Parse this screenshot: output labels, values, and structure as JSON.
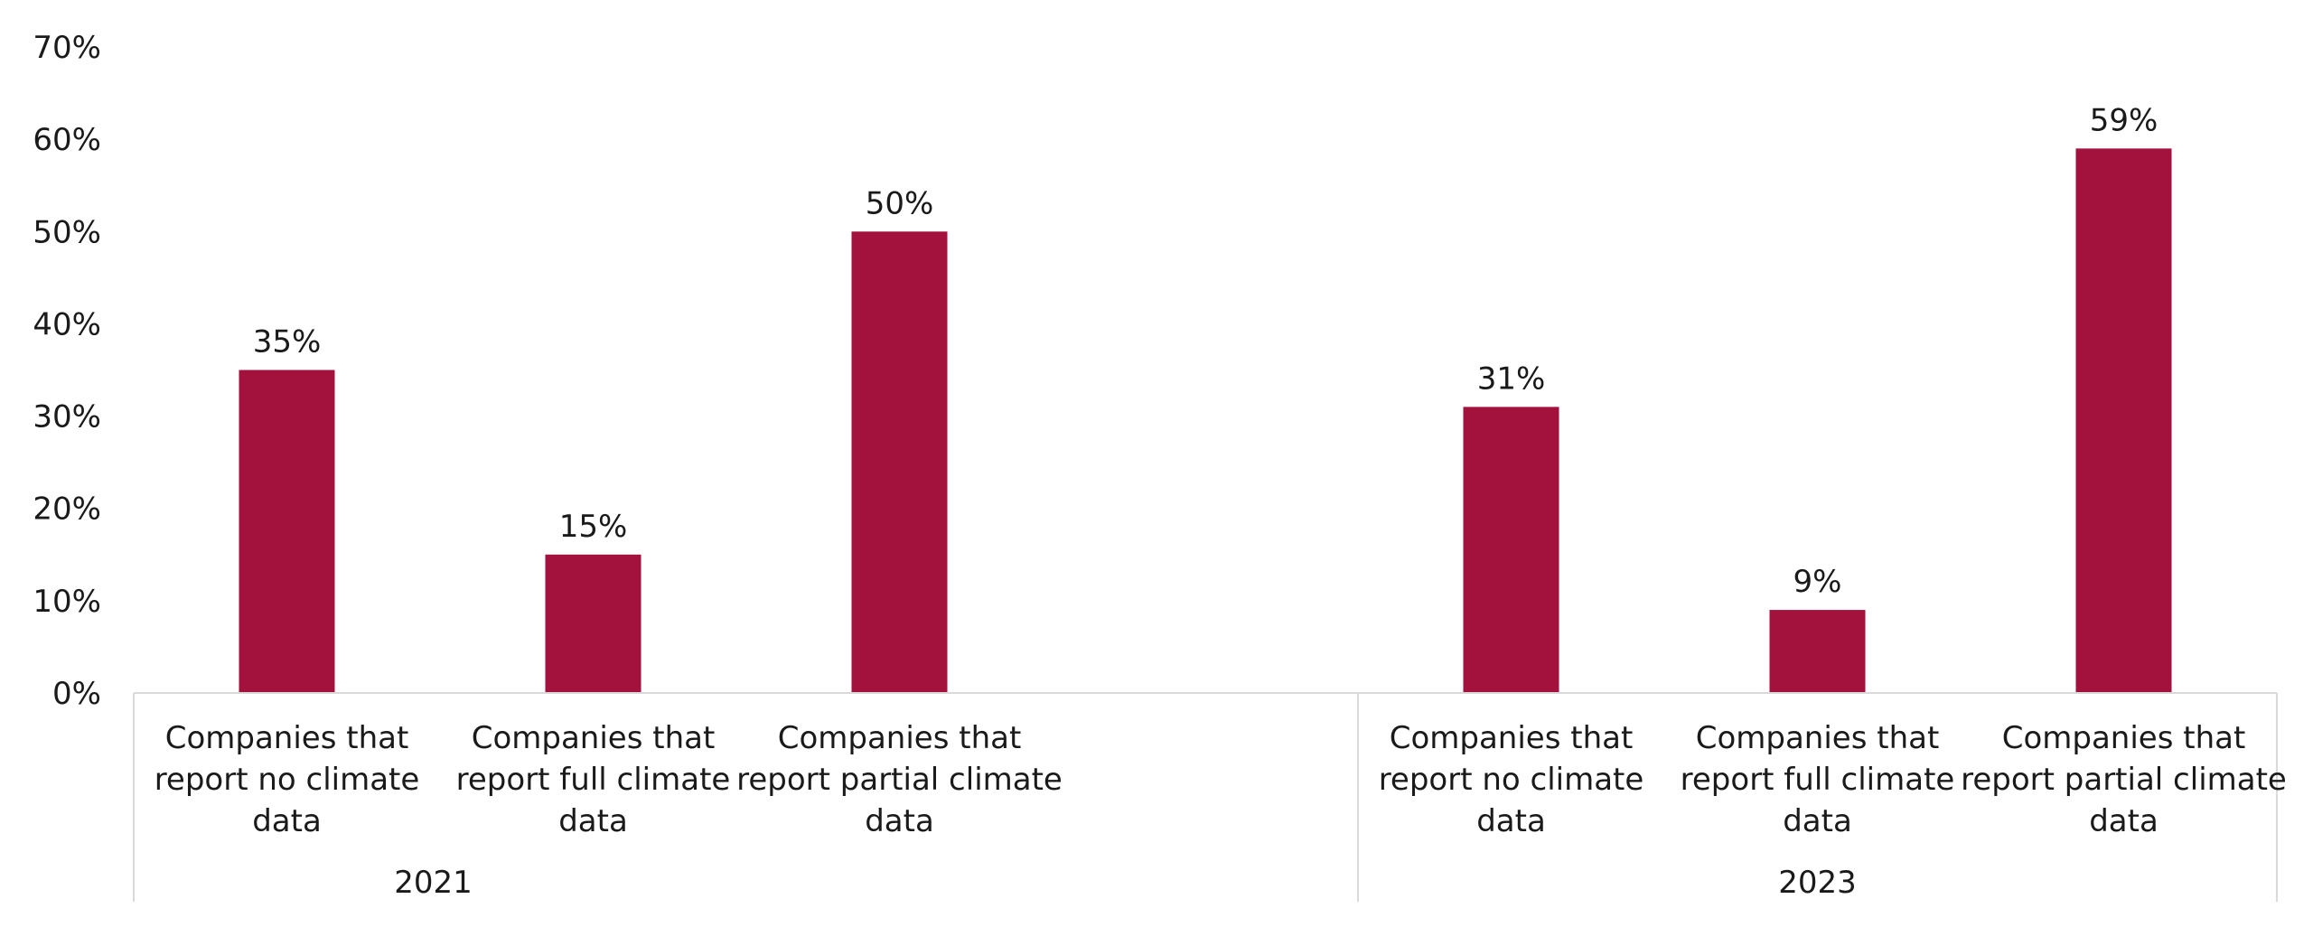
{
  "chart_data": {
    "type": "bar",
    "title": "",
    "xlabel": "",
    "ylabel": "",
    "ylim": [
      0,
      70
    ],
    "y_ticks": [
      "0%",
      "10%",
      "20%",
      "30%",
      "40%",
      "50%",
      "60%",
      "70%"
    ],
    "grid": false,
    "legend": "none",
    "bar_color": "#A3123C",
    "groups": [
      {
        "label": "2021",
        "categories": [
          [
            "Companies that",
            "report no climate",
            "data"
          ],
          [
            "Companies that",
            "report full climate",
            "data"
          ],
          [
            "Companies that",
            "report partial climate",
            "data"
          ]
        ],
        "values": [
          35,
          15,
          50
        ],
        "value_labels": [
          "35%",
          "15%",
          "50%"
        ]
      },
      {
        "label": "2023",
        "categories": [
          [
            "Companies that",
            "report no climate",
            "data"
          ],
          [
            "Companies that",
            "report full climate",
            "data"
          ],
          [
            "Companies that",
            "report partial climate",
            "data"
          ]
        ],
        "values": [
          31,
          9,
          59
        ],
        "value_labels": [
          "31%",
          "9%",
          "59%"
        ]
      }
    ]
  }
}
